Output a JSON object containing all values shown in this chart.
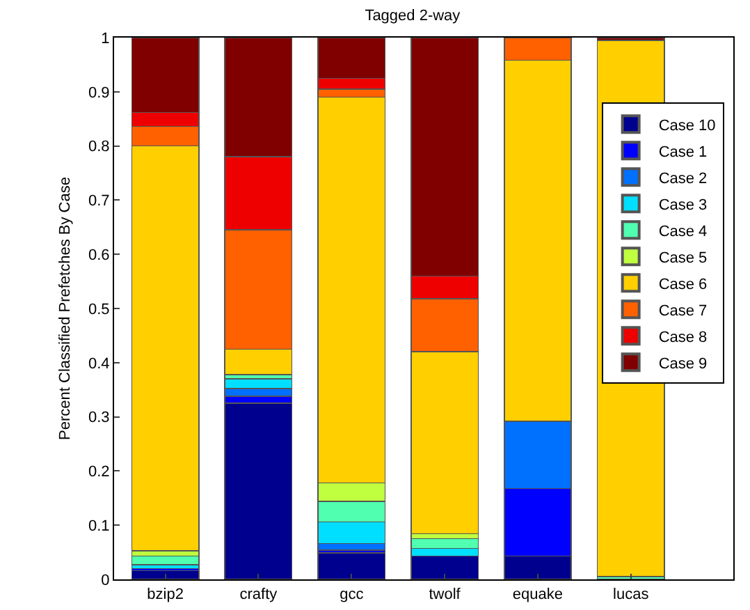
{
  "chart_data": {
    "type": "bar",
    "stacked": true,
    "title": "Tagged 2-way",
    "ylabel": "Percent Classified Prefetches By Case",
    "categories": [
      "bzip2",
      "crafty",
      "gcc",
      "twolf",
      "equake",
      "lucas"
    ],
    "series": [
      {
        "name": "Case 10",
        "color": "#00008f",
        "values": [
          0.016,
          0.325,
          0.049,
          0.043,
          0.043,
          0
        ]
      },
      {
        "name": "Case 1",
        "color": "#0000ff",
        "values": [
          0.004,
          0.013,
          0.005,
          0,
          0.125,
          0
        ]
      },
      {
        "name": "Case 2",
        "color": "#0070ff",
        "values": [
          0,
          0.014,
          0.012,
          0,
          0.124,
          0
        ]
      },
      {
        "name": "Case 3",
        "color": "#00dfff",
        "values": [
          0.007,
          0.018,
          0.04,
          0.014,
          0,
          0
        ]
      },
      {
        "name": "Case 4",
        "color": "#50ffaf",
        "values": [
          0.016,
          0.008,
          0.038,
          0.018,
          0,
          0.005
        ]
      },
      {
        "name": "Case 5",
        "color": "#bfff40",
        "values": [
          0.01,
          0,
          0.034,
          0.009,
          0,
          0
        ]
      },
      {
        "name": "Case 6",
        "color": "#ffcf00",
        "values": [
          0.747,
          0.047,
          0.712,
          0.336,
          0.666,
          0.99
        ]
      },
      {
        "name": "Case 7",
        "color": "#ff6000",
        "values": [
          0.036,
          0.22,
          0.015,
          0.098,
          0.042,
          0
        ]
      },
      {
        "name": "Case 8",
        "color": "#ef0000",
        "values": [
          0.026,
          0.135,
          0.02,
          0.042,
          0,
          0
        ]
      },
      {
        "name": "Case 9",
        "color": "#800000",
        "values": [
          0.138,
          0.22,
          0.075,
          0.44,
          0,
          0.005
        ]
      }
    ],
    "ylim": [
      0,
      1
    ],
    "yticks": [
      0,
      0.1,
      0.2,
      0.3,
      0.4,
      0.5,
      0.6,
      0.7,
      0.8,
      0.9,
      1
    ],
    "grid": false,
    "legend": "top right"
  }
}
